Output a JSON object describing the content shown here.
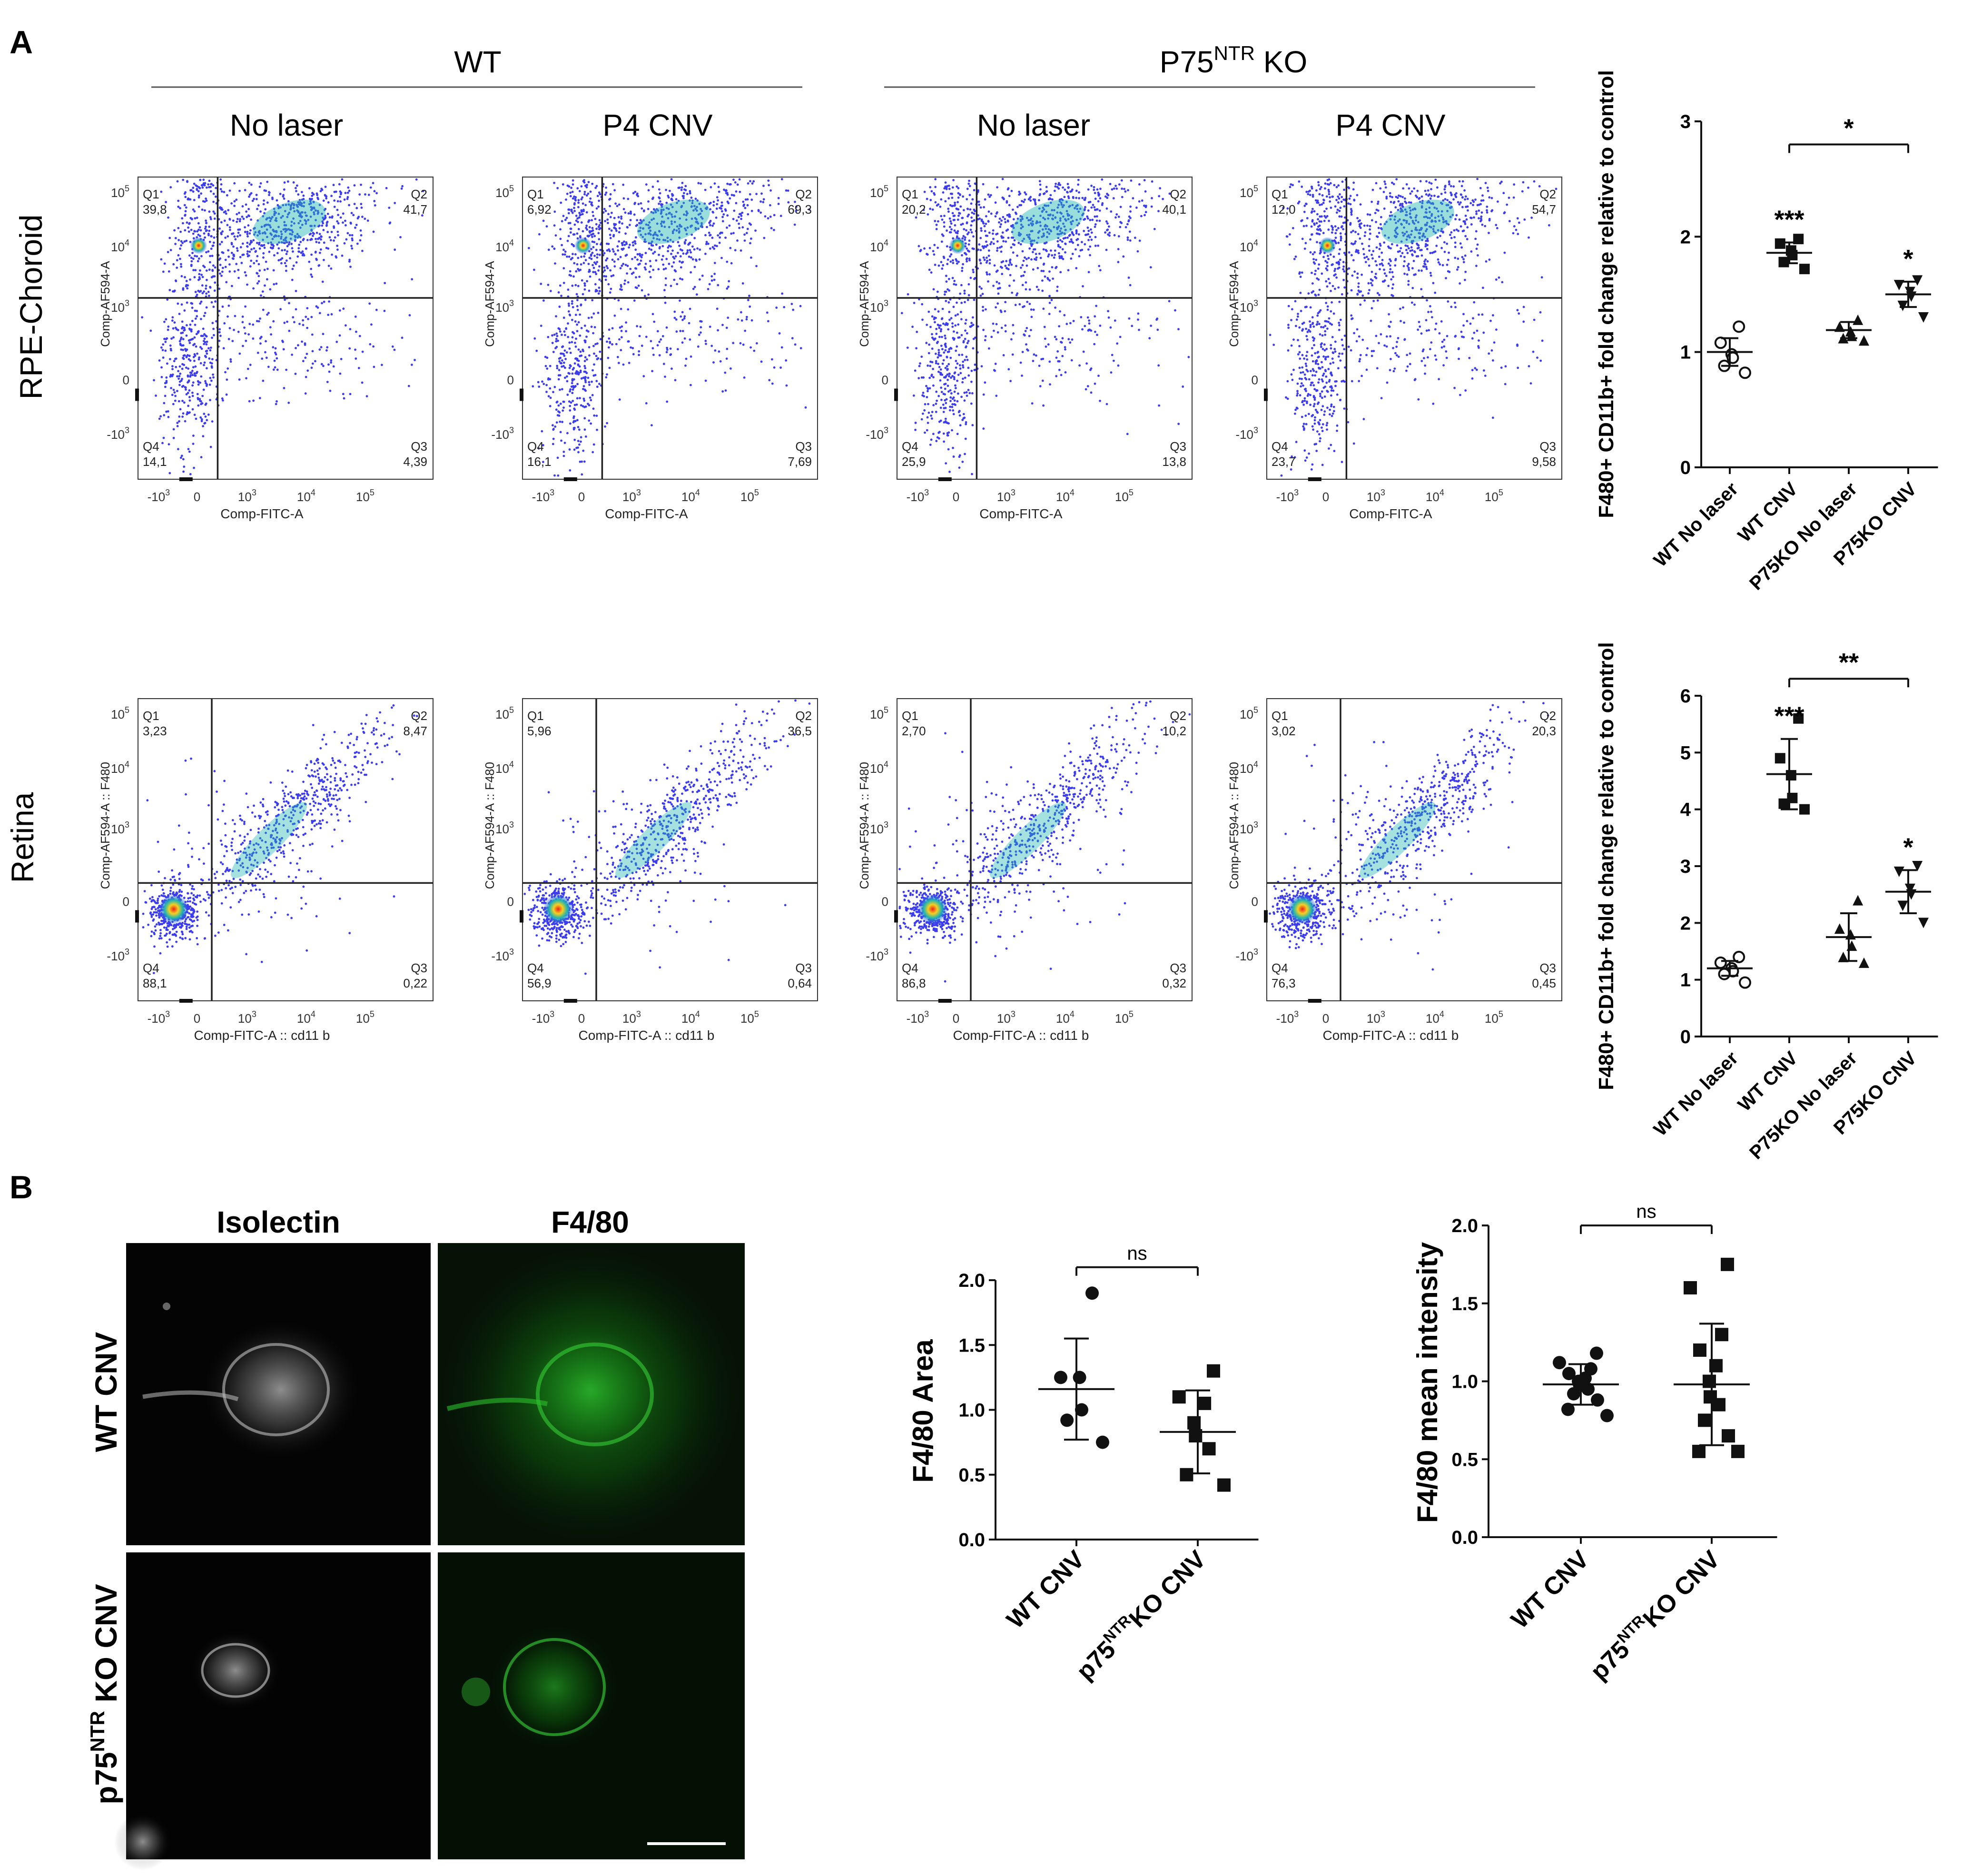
{
  "panelA": {
    "letter": "A",
    "groups": [
      {
        "label": "WT"
      },
      {
        "label_main": "P75",
        "label_sup": "NTR",
        "label_tail": " KO"
      }
    ],
    "conditions": [
      "No laser",
      "P4 CNV",
      "No laser",
      "P4 CNV"
    ],
    "row_labels": [
      "RPE-Choroid",
      "Retina"
    ],
    "tick_labels": {
      "x": [
        "-10",
        "0",
        "10",
        "10",
        "10",
        "10"
      ],
      "x_exp": [
        "3",
        "",
        "3",
        "4",
        "5",
        ""
      ],
      "y": [
        "10",
        "10",
        "10",
        "0",
        "-10"
      ],
      "y_exp": [
        "5",
        "4",
        "3",
        "",
        "3"
      ]
    },
    "flow_rows": [
      {
        "xlabel": "Comp-FITC-A",
        "ylabel": "Comp-AF594-A",
        "plots": [
          {
            "Q1": "39,8",
            "Q2": "41,7",
            "Q3": "4,39",
            "Q4": "14,1"
          },
          {
            "Q1": "6,92",
            "Q2": "69,3",
            "Q3": "7,69",
            "Q4": "16,1"
          },
          {
            "Q1": "20,2",
            "Q2": "40,1",
            "Q3": "13,8",
            "Q4": "25,9"
          },
          {
            "Q1": "12,0",
            "Q2": "54,7",
            "Q3": "9,58",
            "Q4": "23,7"
          }
        ]
      },
      {
        "xlabel": "Comp-FITC-A :: cd11 b",
        "ylabel": "Comp-AF594-A :: F480",
        "plots": [
          {
            "Q1": "3,23",
            "Q2": "8,47",
            "Q3": "0,22",
            "Q4": "88,1"
          },
          {
            "Q1": "5,96",
            "Q2": "36,5",
            "Q3": "0,64",
            "Q4": "56,9"
          },
          {
            "Q1": "2,70",
            "Q2": "10,2",
            "Q3": "0,32",
            "Q4": "86,8"
          },
          {
            "Q1": "3,02",
            "Q2": "20,3",
            "Q3": "0,45",
            "Q4": "76,3"
          }
        ]
      }
    ],
    "quadrant_names": [
      "Q1",
      "Q2",
      "Q3",
      "Q4"
    ]
  },
  "panelB": {
    "letter": "B",
    "col_labels": [
      "Isolectin",
      "F4/80"
    ],
    "row_labels": [
      {
        "main": "WT CNV"
      },
      {
        "main": "p75",
        "sup": "NTR",
        "tail": " KO CNV"
      }
    ]
  },
  "chart_data": [
    {
      "type": "scatter",
      "subtype": "dot-plot-mean-sd",
      "ylabel": "F480+ CD11b+ fold change relative to control",
      "ylim": [
        0,
        3
      ],
      "yticks": [
        "0",
        "1",
        "2",
        "3"
      ],
      "categories": [
        "WT No laser",
        "WT CNV",
        "P75KO No laser",
        "P75KO CNV"
      ],
      "markers": [
        "open-circle",
        "filled-square",
        "filled-triangle",
        "filled-inverted-triangle"
      ],
      "points": [
        [
          1.22,
          1.08,
          0.98,
          0.95,
          0.88,
          0.82
        ],
        [
          1.98,
          1.94,
          1.88,
          1.84,
          1.78,
          1.72
        ],
        [
          1.28,
          1.22,
          1.18,
          1.14,
          1.12,
          1.1
        ],
        [
          1.62,
          1.58,
          1.52,
          1.48,
          1.4,
          1.3
        ]
      ],
      "mean": [
        1.0,
        1.86,
        1.19,
        1.5
      ],
      "sd": [
        0.12,
        0.09,
        0.07,
        0.11
      ],
      "significance": [
        "",
        "***",
        "",
        "*"
      ],
      "bracket": {
        "from": 1,
        "to": 3,
        "label": "*",
        "y": 2.8
      }
    },
    {
      "type": "scatter",
      "subtype": "dot-plot-mean-sd",
      "ylabel": "F480+ CD11b+ fold change relative to control",
      "ylim": [
        0,
        6
      ],
      "yticks": [
        "0",
        "1",
        "2",
        "3",
        "4",
        "5",
        "6"
      ],
      "categories": [
        "WT No laser",
        "WT CNV",
        "P75KO No laser",
        "P75KO CNV"
      ],
      "markers": [
        "open-circle",
        "filled-square",
        "filled-triangle",
        "filled-inverted-triangle"
      ],
      "points": [
        [
          1.4,
          1.3,
          1.2,
          1.15,
          1.1,
          0.95
        ],
        [
          5.6,
          4.9,
          4.6,
          4.2,
          4.1,
          4.0
        ],
        [
          2.4,
          1.9,
          1.8,
          1.6,
          1.4,
          1.3
        ],
        [
          3.0,
          2.9,
          2.6,
          2.5,
          2.3,
          2.0
        ]
      ],
      "mean": [
        1.2,
        4.62,
        1.75,
        2.55
      ],
      "sd": [
        0.13,
        0.62,
        0.42,
        0.38
      ],
      "significance": [
        "",
        "***",
        "",
        "*"
      ],
      "bracket": {
        "from": 1,
        "to": 3,
        "label": "**",
        "y": 6.3
      }
    },
    {
      "type": "scatter",
      "subtype": "dot-plot-mean-sd",
      "ylabel": "F4/80 Area",
      "ylim": [
        0,
        2
      ],
      "yticks": [
        "0.0",
        "0.5",
        "1.0",
        "1.5",
        "2.0"
      ],
      "categories": [
        "WT CNV",
        "p75NTR KO CNV"
      ],
      "category_labels": [
        {
          "main": "WT CNV"
        },
        {
          "main": "p75",
          "sup": "NTR",
          "tail": "KO CNV"
        }
      ],
      "markers": [
        "filled-circle",
        "filled-square"
      ],
      "points": [
        [
          1.9,
          1.25,
          1.25,
          1.0,
          0.92,
          0.75
        ],
        [
          1.3,
          1.1,
          1.05,
          0.9,
          0.8,
          0.7,
          0.5,
          0.42
        ]
      ],
      "mean": [
        1.16,
        0.83
      ],
      "sd": [
        0.39,
        0.32
      ],
      "bracket": {
        "from": 0,
        "to": 1,
        "label": "ns",
        "y": 2.1
      }
    },
    {
      "type": "scatter",
      "subtype": "dot-plot-mean-sd",
      "ylabel": "F4/80 mean intensity",
      "ylim": [
        0,
        2
      ],
      "yticks": [
        "0.0",
        "0.5",
        "1.0",
        "1.5",
        "2.0"
      ],
      "categories": [
        "WT CNV",
        "p75NTR KO CNV"
      ],
      "category_labels": [
        {
          "main": "WT CNV"
        },
        {
          "main": "p75",
          "sup": "NTR",
          "tail": "KO CNV"
        }
      ],
      "markers": [
        "filled-circle",
        "filled-square"
      ],
      "points": [
        [
          1.18,
          1.12,
          1.08,
          1.05,
          1.02,
          1.0,
          0.98,
          0.95,
          0.92,
          0.88,
          0.82,
          0.78
        ],
        [
          1.75,
          1.6,
          1.3,
          1.2,
          1.1,
          1.0,
          0.9,
          0.85,
          0.75,
          0.65,
          0.55,
          0.55
        ]
      ],
      "mean": [
        0.98,
        0.98
      ],
      "sd": [
        0.13,
        0.39
      ],
      "bracket": {
        "from": 0,
        "to": 1,
        "label": "ns",
        "y": 2.0
      }
    }
  ],
  "scale_bar": {
    "color": "#ffffff"
  },
  "colors": {
    "density_low": "#3b3bf0",
    "density_mid": "#1fb5b0",
    "density_high": "#f0201a",
    "fluor_green": "#20b020"
  }
}
